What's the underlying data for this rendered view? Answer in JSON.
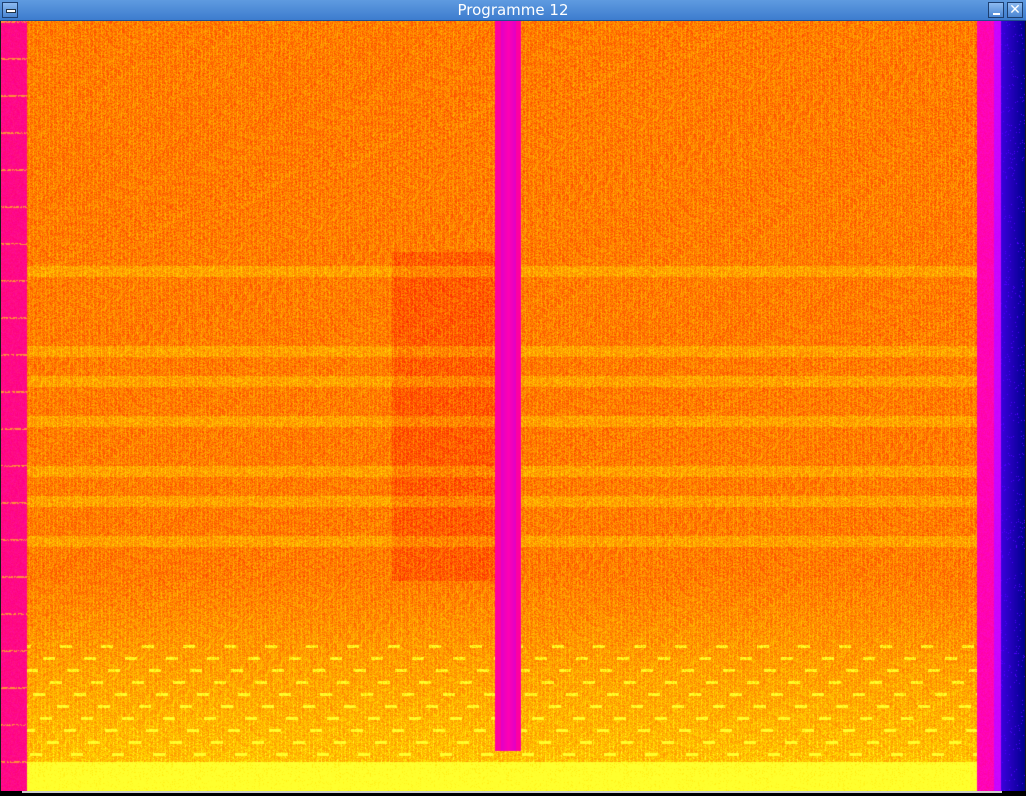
{
  "window": {
    "title": "Programme 12"
  },
  "icons": {
    "menu": "window-menu-icon",
    "minimize": "minimize-icon",
    "close": "close-icon"
  },
  "colors": {
    "titlebar": "#4a8ad8",
    "spectrogram_low": "#ff0000",
    "spectrogram_mid": "#ff8800",
    "spectrogram_high": "#ffff00",
    "magenta_band": "#ff00cc",
    "purple_band": "#b020ff",
    "blue_band": "#0000c8"
  }
}
